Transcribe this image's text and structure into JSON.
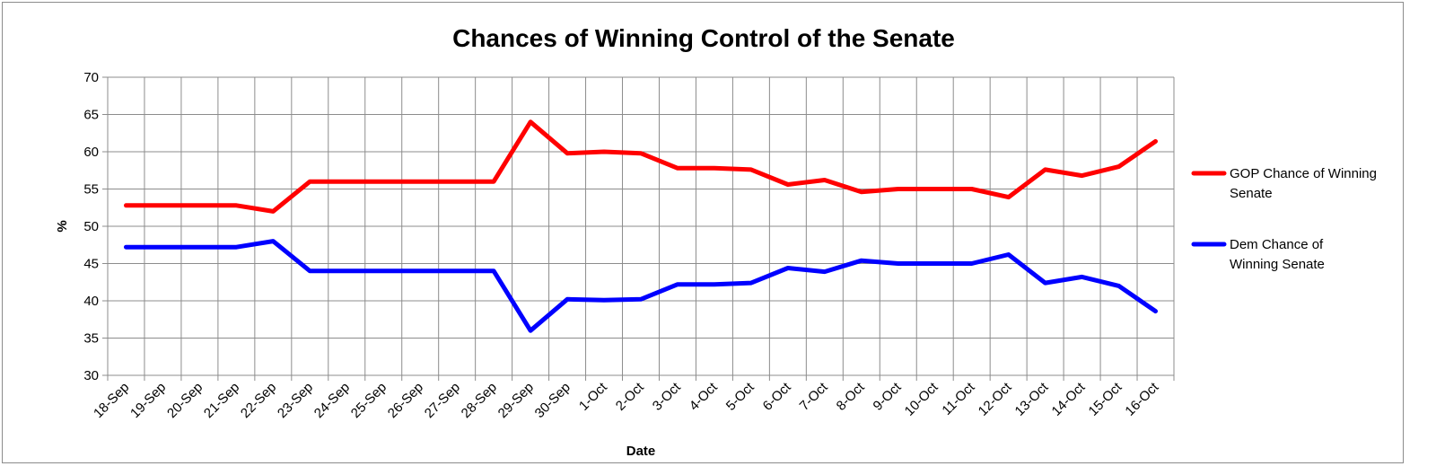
{
  "chart_data": {
    "type": "line",
    "title": "Chances of Winning Control of the Senate",
    "xlabel": "Date",
    "ylabel": "%",
    "ylim": [
      30,
      70
    ],
    "ytick_step": 5,
    "grid": true,
    "legend_position": "right",
    "categories": [
      "18-Sep",
      "19-Sep",
      "20-Sep",
      "21-Sep",
      "22-Sep",
      "23-Sep",
      "24-Sep",
      "25-Sep",
      "26-Sep",
      "27-Sep",
      "28-Sep",
      "29-Sep",
      "30-Sep",
      "1-Oct",
      "2-Oct",
      "3-Oct",
      "4-Oct",
      "5-Oct",
      "6-Oct",
      "7-Oct",
      "8-Oct",
      "9-Oct",
      "10-Oct",
      "11-Oct",
      "12-Oct",
      "13-Oct",
      "14-Oct",
      "15-Oct",
      "16-Oct"
    ],
    "series": [
      {
        "name_lines": [
          "GOP Chance of Winning",
          "Senate"
        ],
        "color": "#ff0000",
        "values": [
          52.8,
          52.8,
          52.8,
          52.8,
          52.0,
          56.0,
          56.0,
          56.0,
          56.0,
          56.0,
          56.0,
          64.0,
          59.8,
          60.0,
          59.8,
          57.8,
          57.8,
          57.6,
          55.6,
          56.2,
          54.6,
          55.0,
          55.0,
          55.0,
          53.9,
          57.6,
          56.8,
          58.0,
          61.4
        ]
      },
      {
        "name_lines": [
          "Dem Chance of",
          "Winning Senate"
        ],
        "color": "#0000ff",
        "values": [
          47.2,
          47.2,
          47.2,
          47.2,
          48.0,
          44.0,
          44.0,
          44.0,
          44.0,
          44.0,
          44.0,
          36.0,
          40.2,
          40.1,
          40.2,
          42.2,
          42.2,
          42.4,
          44.4,
          43.9,
          45.4,
          45.0,
          45.0,
          45.0,
          46.2,
          42.4,
          43.2,
          42.0,
          38.6
        ]
      }
    ]
  }
}
